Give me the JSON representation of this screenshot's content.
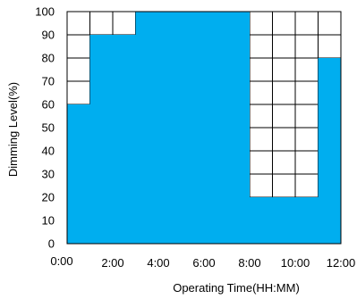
{
  "chart_data": {
    "type": "area",
    "step": true,
    "xlabel": "Operating Time(HH:MM)",
    "ylabel": "Dimming Level(%)",
    "xlim": [
      "0:00",
      "12:00"
    ],
    "ylim": [
      0,
      100
    ],
    "x_ticks": [
      "0:00",
      "2:00",
      "4:00",
      "6:00",
      "8:00",
      "10:00",
      "12:00"
    ],
    "y_ticks": [
      0,
      10,
      20,
      30,
      40,
      50,
      60,
      70,
      80,
      90,
      100
    ],
    "grid": true,
    "fill_color": "#00AEEF",
    "segments": [
      {
        "start": "0:00",
        "end": "1:00",
        "level": 60
      },
      {
        "start": "1:00",
        "end": "3:00",
        "level": 90
      },
      {
        "start": "3:00",
        "end": "8:00",
        "level": 100
      },
      {
        "start": "8:00",
        "end": "11:00",
        "level": 20
      },
      {
        "start": "11:00",
        "end": "12:00",
        "level": 80
      }
    ]
  }
}
